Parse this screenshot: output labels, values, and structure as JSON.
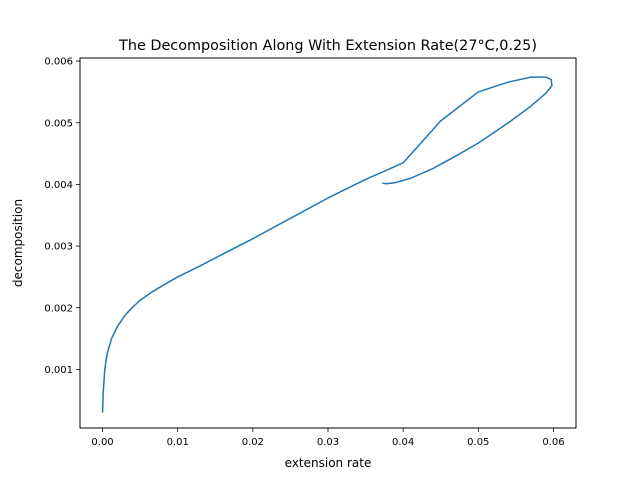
{
  "chart_data": {
    "type": "line",
    "title": "The Decomposition Along With Extension Rate(27°C,0.25)",
    "xlabel": "extension rate",
    "ylabel": "decomposition",
    "xlim": [
      -0.003,
      0.063
    ],
    "ylim": [
      5e-05,
      0.00605
    ],
    "xticks": [
      0.0,
      0.01,
      0.02,
      0.03,
      0.04,
      0.05,
      0.06
    ],
    "xtick_labels": [
      "0.00",
      "0.01",
      "0.02",
      "0.03",
      "0.04",
      "0.05",
      "0.06"
    ],
    "yticks": [
      0.001,
      0.002,
      0.003,
      0.004,
      0.005,
      0.006
    ],
    "ytick_labels": [
      "0.001",
      "0.002",
      "0.003",
      "0.004",
      "0.005",
      "0.006"
    ],
    "grid": false,
    "legend": "none",
    "series": [
      {
        "color": "#1f77b4",
        "x": [
          0.0,
          0.0001,
          0.0003,
          0.0006,
          0.0012,
          0.002,
          0.003,
          0.004,
          0.005,
          0.0065,
          0.008,
          0.01,
          0.013,
          0.016,
          0.02,
          0.025,
          0.03,
          0.035,
          0.04,
          0.045,
          0.05,
          0.054,
          0.057,
          0.059,
          0.0597,
          0.0598,
          0.059,
          0.057,
          0.054,
          0.05,
          0.047,
          0.044,
          0.041,
          0.039,
          0.0378,
          0.0373
        ],
        "y": [
          0.00031,
          0.00065,
          0.001,
          0.00125,
          0.0015,
          0.0017,
          0.00188,
          0.00201,
          0.00212,
          0.00225,
          0.00236,
          0.0025,
          0.00268,
          0.00287,
          0.00312,
          0.00345,
          0.00378,
          0.00408,
          0.00435,
          0.00503,
          0.0055,
          0.00566,
          0.00574,
          0.00574,
          0.0057,
          0.0056,
          0.00548,
          0.00527,
          0.005,
          0.00467,
          0.00446,
          0.00426,
          0.0041,
          0.00403,
          0.00401,
          0.00402
        ]
      }
    ]
  }
}
